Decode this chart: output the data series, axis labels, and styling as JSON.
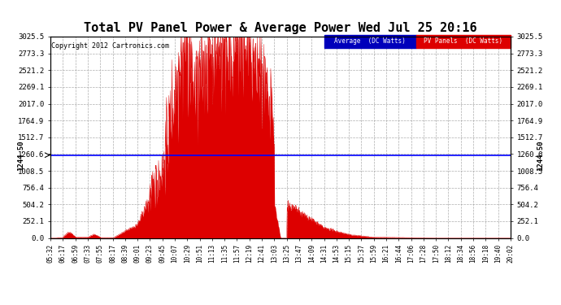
{
  "title": "Total PV Panel Power & Average Power Wed Jul 25 20:16",
  "copyright": "Copyright 2012 Cartronics.com",
  "avg_value": 1244.5,
  "avg_label": "1244.50",
  "yticks": [
    0.0,
    252.1,
    504.2,
    756.4,
    1008.5,
    1260.6,
    1512.7,
    1764.9,
    2017.0,
    2269.1,
    2521.2,
    2773.3,
    3025.5
  ],
  "ymax": 3025.5,
  "ymin": 0.0,
  "background_color": "#ffffff",
  "plot_bg_color": "#ffffff",
  "grid_color": "#999999",
  "fill_color": "#dd0000",
  "line_color": "#dd0000",
  "avg_line_color": "#0000ff",
  "legend_avg_bg": "#0000bb",
  "legend_pv_bg": "#dd0000",
  "x_labels": [
    "05:32",
    "06:17",
    "06:59",
    "07:33",
    "07:55",
    "08:17",
    "08:39",
    "09:01",
    "09:23",
    "09:45",
    "10:07",
    "10:29",
    "10:51",
    "11:13",
    "11:35",
    "11:57",
    "12:19",
    "12:41",
    "13:03",
    "13:25",
    "13:47",
    "14:09",
    "14:31",
    "14:53",
    "15:15",
    "15:37",
    "15:59",
    "16:21",
    "16:44",
    "17:06",
    "17:28",
    "17:50",
    "18:12",
    "18:34",
    "18:56",
    "19:18",
    "19:40",
    "20:02"
  ]
}
